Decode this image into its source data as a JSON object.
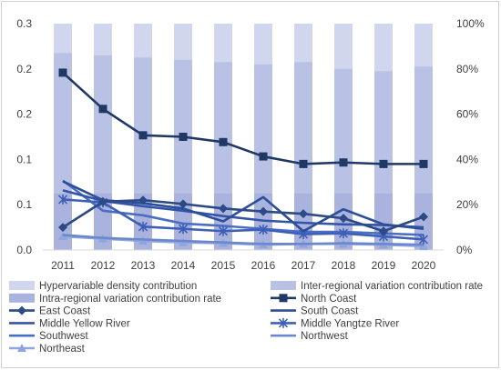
{
  "chart_data": {
    "type": "bar",
    "categories": [
      "2011",
      "2012",
      "2013",
      "2014",
      "2015",
      "2016",
      "2017",
      "2018",
      "2019",
      "2020"
    ],
    "left_axis": {
      "ylim": [
        0,
        0.3
      ],
      "tick_labels": [
        "0.3",
        "0.2",
        "0.2",
        "0.1",
        "0.1",
        "0.0"
      ]
    },
    "right_axis": {
      "ylim": [
        0,
        100
      ],
      "tick_labels": [
        "100%",
        "80%",
        "60%",
        "40%",
        "20%",
        "0%"
      ]
    },
    "bar_series": [
      {
        "name": "Hypervariable density contribution",
        "color": "#d0d6ee",
        "values": [
          100,
          100,
          100,
          100,
          100,
          100,
          100,
          100,
          100,
          100
        ]
      },
      {
        "name": "Inter-regional variation contribution rate",
        "color": "#b9c1e4",
        "values": [
          87,
          86,
          85,
          84,
          83,
          82,
          83,
          80,
          79,
          81
        ]
      },
      {
        "name": "Intra-regional variation contribution rate",
        "color": "#aab3de",
        "values": [
          25,
          25,
          25,
          25,
          25,
          25,
          25,
          25,
          25,
          25
        ]
      }
    ],
    "line_series": [
      {
        "name": "North Coast",
        "color": "#203864",
        "marker": "square",
        "values": [
          0.235,
          0.187,
          0.152,
          0.15,
          0.143,
          0.124,
          0.114,
          0.116,
          0.114,
          0.114
        ]
      },
      {
        "name": "East Coast",
        "color": "#2c4a85",
        "marker": "diamond",
        "values": [
          0.03,
          0.064,
          0.066,
          0.061,
          0.055,
          0.051,
          0.048,
          0.042,
          0.025,
          0.044
        ]
      },
      {
        "name": "South Coast",
        "color": "#2d4f98",
        "marker": "none",
        "values": [
          0.091,
          0.066,
          0.062,
          0.055,
          0.038,
          0.07,
          0.025,
          0.054,
          0.034,
          0.028
        ]
      },
      {
        "name": "Middle Yellow River",
        "color": "#3354a8",
        "marker": "none",
        "values": [
          0.079,
          0.065,
          0.058,
          0.052,
          0.045,
          0.039,
          0.036,
          0.034,
          0.033,
          0.03
        ]
      },
      {
        "name": "Middle Yangtze River",
        "color": "#3d5fb6",
        "marker": "asterisk",
        "values": [
          0.067,
          0.063,
          0.031,
          0.028,
          0.025,
          0.027,
          0.021,
          0.022,
          0.018,
          0.014
        ]
      },
      {
        "name": "Southwest",
        "color": "#4a6ec4",
        "marker": "none",
        "values": [
          0.092,
          0.052,
          0.046,
          0.035,
          0.032,
          0.028,
          0.024,
          0.024,
          0.022,
          0.02
        ]
      },
      {
        "name": "Northwest",
        "color": "#6b88cf",
        "marker": "none",
        "values": [
          0.02,
          0.016,
          0.014,
          0.012,
          0.01,
          0.008,
          0.008,
          0.009,
          0.008,
          0.007
        ]
      },
      {
        "name": "Northeast",
        "color": "#8fa6dc",
        "marker": "triangle",
        "values": [
          0.018,
          0.015,
          0.012,
          0.01,
          0.009,
          0.007,
          0.008,
          0.008,
          0.007,
          0.005
        ]
      }
    ],
    "legend_position": "bottom",
    "grid": false
  }
}
